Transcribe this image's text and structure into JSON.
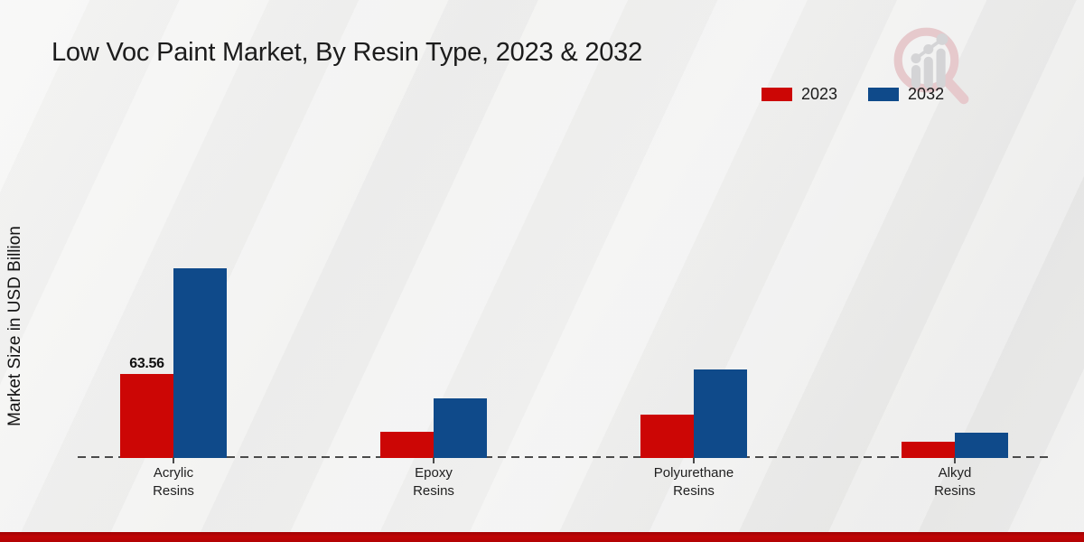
{
  "chart_data": {
    "type": "bar",
    "title": "Low Voc Paint Market, By Resin Type, 2023 & 2032",
    "xlabel": "",
    "ylabel": "Market Size in USD Billion",
    "categories": [
      "Acrylic Resins",
      "Epoxy Resins",
      "Polyurethane Resins",
      "Alkyd Resins"
    ],
    "series": [
      {
        "name": "2023",
        "color": "#cc0605",
        "values": [
          63.56,
          19.8,
          32.8,
          12.5
        ],
        "data_labels": [
          "63.56",
          "",
          "",
          ""
        ]
      },
      {
        "name": "2032",
        "color": "#0f4a8a",
        "values": [
          143.5,
          45.1,
          67.0,
          19.1
        ],
        "data_labels": [
          "",
          "",
          "",
          ""
        ]
      }
    ],
    "ylim": [
      0,
      150
    ],
    "grid": false,
    "y_axis_ticks_visible": false,
    "legend_position": "top-right",
    "baseline_style": "dashed"
  },
  "branding": {
    "logo_name": "magnifier-bar-chart-watermark-logo"
  },
  "colors": {
    "series_2023_red": "#cc0605",
    "series_2032_blue": "#0f4a8a",
    "bottom_strip_red": "#b80304",
    "baseline_gray": "#4a4a4a",
    "background_gray": "#efefee",
    "text_dark": "#1c1c1c"
  }
}
